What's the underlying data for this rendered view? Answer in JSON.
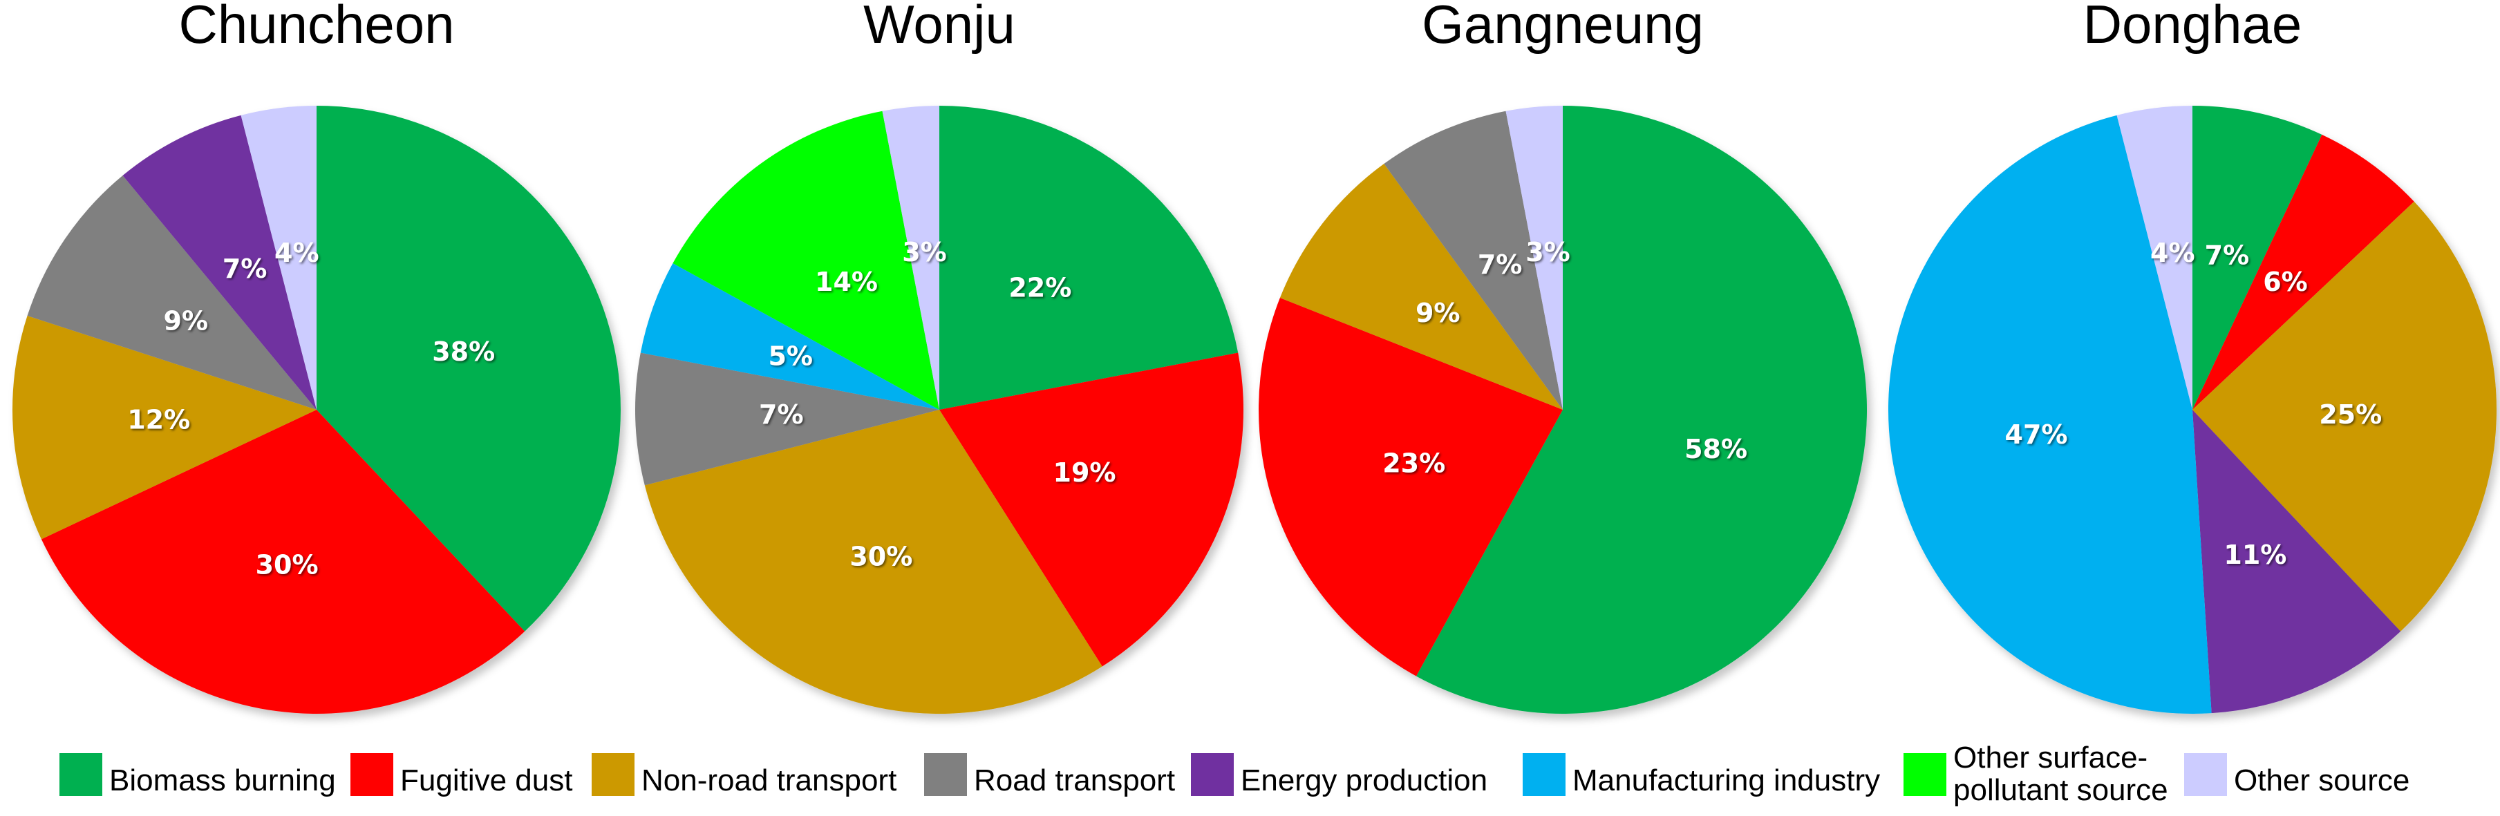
{
  "colors": {
    "Biomass burning": "#00B050",
    "Fugitive dust": "#FF0000",
    "Non-road transport": "#CC9900",
    "Road transport": "#808080",
    "Energy production": "#7030A0",
    "Manufacturing industry": "#00B0F0",
    "Other surface-pollutant source": "#00FF00",
    "Other source": "#CCCCFF"
  },
  "legend": [
    {
      "key": "Biomass burning",
      "lines": [
        "Biomass burning"
      ]
    },
    {
      "key": "Fugitive dust",
      "lines": [
        "Fugitive dust"
      ]
    },
    {
      "key": "Non-road transport",
      "lines": [
        "Non-road transport"
      ]
    },
    {
      "key": "Road transport",
      "lines": [
        "Road transport"
      ]
    },
    {
      "key": "Energy production",
      "lines": [
        "Energy production"
      ]
    },
    {
      "key": "Manufacturing industry",
      "lines": [
        "Manufacturing industry"
      ]
    },
    {
      "key": "Other surface-pollutant source",
      "lines": [
        "Other surface-",
        "pollutant source"
      ]
    },
    {
      "key": "Other source",
      "lines": [
        "Other source"
      ]
    }
  ],
  "chart_data": [
    {
      "type": "pie",
      "title": "Chuncheon",
      "slices": [
        {
          "name": "Biomass burning",
          "value": 38,
          "label": "38%"
        },
        {
          "name": "Fugitive dust",
          "value": 30,
          "label": "30%"
        },
        {
          "name": "Non-road transport",
          "value": 12,
          "label": "12%"
        },
        {
          "name": "Road transport",
          "value": 9,
          "label": "9%"
        },
        {
          "name": "Energy production",
          "value": 7,
          "label": "7%"
        },
        {
          "name": "Other source",
          "value": 4,
          "label": "4%"
        }
      ]
    },
    {
      "type": "pie",
      "title": "Wonju",
      "slices": [
        {
          "name": "Biomass burning",
          "value": 22,
          "label": "22%"
        },
        {
          "name": "Fugitive dust",
          "value": 19,
          "label": "19%"
        },
        {
          "name": "Non-road transport",
          "value": 30,
          "label": "30%"
        },
        {
          "name": "Road transport",
          "value": 7,
          "label": "7%"
        },
        {
          "name": "Manufacturing industry",
          "value": 5,
          "label": "5%"
        },
        {
          "name": "Other surface-pollutant source",
          "value": 14,
          "label": "14%"
        },
        {
          "name": "Other source",
          "value": 3,
          "label": "3%"
        }
      ]
    },
    {
      "type": "pie",
      "title": "Gangneung",
      "slices": [
        {
          "name": "Biomass burning",
          "value": 58,
          "label": "58%"
        },
        {
          "name": "Fugitive dust",
          "value": 23,
          "label": "23%"
        },
        {
          "name": "Non-road transport",
          "value": 9,
          "label": "9%"
        },
        {
          "name": "Road transport",
          "value": 7,
          "label": "7%"
        },
        {
          "name": "Other source",
          "value": 3,
          "label": "3%"
        }
      ]
    },
    {
      "type": "pie",
      "title": "Donghae",
      "slices": [
        {
          "name": "Biomass burning",
          "value": 7,
          "label": "7%"
        },
        {
          "name": "Fugitive dust",
          "value": 6,
          "label": "6%"
        },
        {
          "name": "Non-road transport",
          "value": 25,
          "label": "25%"
        },
        {
          "name": "Energy production",
          "value": 11,
          "label": "11%"
        },
        {
          "name": "Manufacturing industry",
          "value": 47,
          "label": "47%"
        },
        {
          "name": "Other source",
          "value": 4,
          "label": "4%"
        }
      ]
    }
  ]
}
